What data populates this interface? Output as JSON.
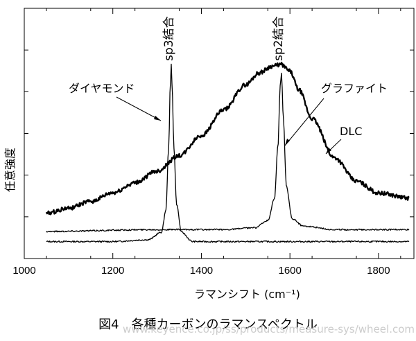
{
  "chart_data": {
    "type": "line",
    "xlabel": "ラマンシフト (cm⁻¹)",
    "ylabel": "任意強度",
    "xlim": [
      1000,
      1880
    ],
    "x_ticks": [
      1000,
      1200,
      1400,
      1600,
      1800
    ],
    "y_ticks_shown": false,
    "grid": false,
    "series": [
      {
        "name": "ダイヤモンド",
        "x": [
          1050,
          1200,
          1280,
          1310,
          1320,
          1326,
          1330,
          1332,
          1334,
          1338,
          1344,
          1355,
          1380,
          1450,
          1550,
          1650,
          1750,
          1870
        ],
        "y": [
          0.05,
          0.05,
          0.06,
          0.1,
          0.22,
          0.55,
          0.9,
          1.0,
          0.88,
          0.55,
          0.25,
          0.1,
          0.05,
          0.05,
          0.05,
          0.05,
          0.05,
          0.05
        ]
      },
      {
        "name": "グラファイト",
        "x": [
          1050,
          1300,
          1450,
          1520,
          1550,
          1565,
          1573,
          1578,
          1581,
          1585,
          1592,
          1605,
          1630,
          1700,
          1870
        ],
        "y": [
          0.07,
          0.08,
          0.08,
          0.09,
          0.13,
          0.25,
          0.55,
          0.88,
          0.95,
          0.7,
          0.32,
          0.14,
          0.1,
          0.08,
          0.08
        ]
      },
      {
        "name": "DLC",
        "x": [
          1050,
          1100,
          1150,
          1200,
          1250,
          1300,
          1350,
          1400,
          1450,
          1500,
          1530,
          1560,
          1580,
          1600,
          1620,
          1650,
          1700,
          1750,
          1800,
          1870
        ],
        "y": [
          0.12,
          0.15,
          0.19,
          0.24,
          0.3,
          0.37,
          0.46,
          0.58,
          0.73,
          0.88,
          0.95,
          0.99,
          1.0,
          0.96,
          0.85,
          0.68,
          0.45,
          0.31,
          0.24,
          0.21
        ]
      }
    ],
    "annotations": {
      "sp3_bond": "sp3結合",
      "sp2_bond": "sp2結合",
      "diamond": "ダイヤモンド",
      "graphite": "グラファイト",
      "dlc": "DLC"
    }
  },
  "caption": "図4　各種カーボンのラマンスペクトル",
  "watermark": "www.keyence.co.jp/ss/products/measure-sys/wheel.com"
}
